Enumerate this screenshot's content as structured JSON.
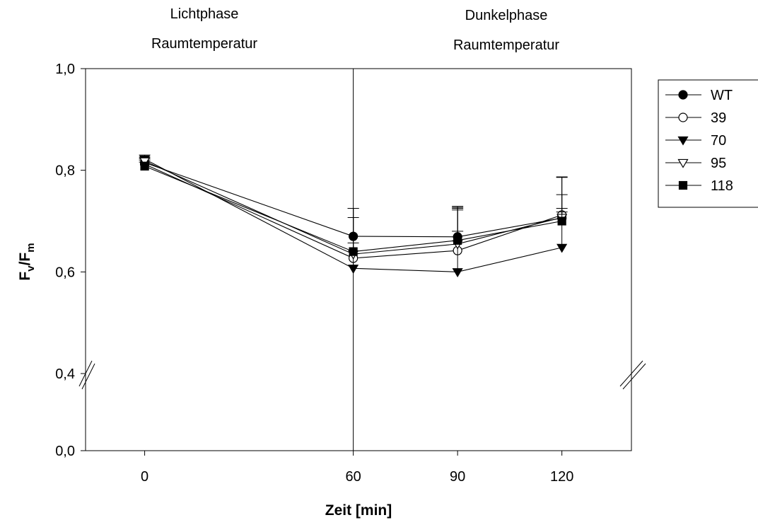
{
  "chart_data": {
    "type": "line",
    "title": "",
    "xlabel": "Zeit [min]",
    "ylabel": {
      "main": "F",
      "sub1": "v",
      "sep": "/F",
      "sub2": "m"
    },
    "x": [
      0,
      60,
      90,
      120
    ],
    "x_ticks": [
      "0",
      "60",
      "90",
      "120"
    ],
    "xlim": [
      -17,
      140
    ],
    "y_axis_break": true,
    "ylim_lower": [
      0.0,
      0.4
    ],
    "ylim_upper": [
      0.4,
      1.0
    ],
    "y_ticks": [
      {
        "value": 0.0,
        "label": "0,0"
      },
      {
        "value": 0.4,
        "label": "0,4"
      },
      {
        "value": 0.6,
        "label": "0,6"
      },
      {
        "value": 0.8,
        "label": "0,8"
      },
      {
        "value": 1.0,
        "label": "1,0"
      }
    ],
    "phase_divider_x": 60,
    "phase_annotations": [
      {
        "line1": "Lichtphase",
        "line2": "Raumtemperatur",
        "anchor_x": 0
      },
      {
        "line1": "Dunkelphase",
        "line2": "Raumtemperatur",
        "anchor_x": 105
      }
    ],
    "legend_position": "top-right, outside plot",
    "grid": false,
    "series": [
      {
        "name": "WT",
        "marker": "circle-filled",
        "values": [
          0.815,
          0.67,
          0.669,
          0.706
        ],
        "errors": [
          0.008,
          0.055,
          0.06,
          0.08
        ]
      },
      {
        "name": "39",
        "marker": "circle-open",
        "values": [
          0.812,
          0.627,
          0.642,
          0.712
        ],
        "errors": [
          0.008,
          0.08,
          0.08,
          0.075
        ]
      },
      {
        "name": "70",
        "marker": "triangle-down-filled",
        "values": [
          0.822,
          0.607,
          0.6,
          0.648
        ],
        "errors": [
          0.008,
          0.05,
          0.08,
          0.07
        ]
      },
      {
        "name": "95",
        "marker": "triangle-down-open",
        "values": [
          0.818,
          0.635,
          0.655,
          0.707
        ],
        "errors": [
          0.008,
          0.09,
          0.07,
          0.045
        ]
      },
      {
        "name": "118",
        "marker": "square-filled",
        "values": [
          0.808,
          0.64,
          0.662,
          0.7
        ],
        "errors": [
          0.008,
          0.085,
          0.065,
          0.025
        ]
      }
    ]
  }
}
